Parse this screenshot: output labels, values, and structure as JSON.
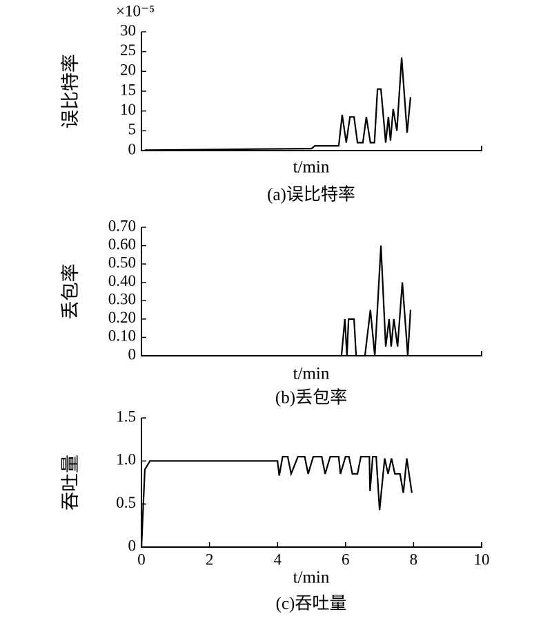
{
  "chart_data": [
    {
      "type": "line",
      "title": "(a)误比特率",
      "ylabel": "误比特率",
      "xlabel": "t/min",
      "y_multiplier": "×10⁻⁵",
      "xlim": [
        0,
        10
      ],
      "ylim": [
        0,
        30
      ],
      "yticks": [
        0,
        5,
        10,
        15,
        20,
        25,
        30
      ],
      "series": [
        {
          "color": "#000000",
          "x": [
            0.1,
            2.4,
            3.5,
            5.0,
            5.1,
            5.8,
            5.9,
            6.02,
            6.13,
            6.25,
            6.35,
            6.51,
            6.61,
            6.73,
            6.85,
            6.94,
            7.04,
            7.18,
            7.26,
            7.32,
            7.4,
            7.51,
            7.65,
            7.81,
            7.91
          ],
          "values": [
            0.1,
            0.3,
            0.4,
            0.5,
            1.2,
            1.2,
            9,
            2,
            8.5,
            8.5,
            2,
            2,
            8.5,
            2,
            2,
            15.5,
            15.5,
            2,
            8.5,
            2.5,
            10.5,
            5,
            23.5,
            4.5,
            13.5
          ]
        }
      ]
    },
    {
      "type": "line",
      "title": "(b)丢包率",
      "ylabel": "丢包率",
      "xlabel": "t/min",
      "xlim": [
        0,
        10
      ],
      "ylim": [
        0,
        0.7
      ],
      "yticks": [
        0,
        {
          "value": 0.1,
          "label": "0.10"
        },
        {
          "value": 0.2,
          "label": "0.20"
        },
        {
          "value": 0.3,
          "label": "0.30"
        },
        {
          "value": 0.4,
          "label": "0.40"
        },
        {
          "value": 0.5,
          "label": "0.50"
        },
        {
          "value": 0.6,
          "label": "0.60"
        },
        {
          "value": 0.7,
          "label": "0.70"
        }
      ],
      "series": [
        {
          "color": "#000000",
          "x": [
            0,
            5.88,
            5.98,
            6.04,
            6.09,
            6.25,
            6.31,
            6.57,
            6.73,
            6.86,
            7.04,
            7.18,
            7.28,
            7.34,
            7.42,
            7.53,
            7.67,
            7.83,
            7.91
          ],
          "values": [
            0,
            0,
            0.2,
            0,
            0.2,
            0.2,
            0,
            0,
            0.25,
            0,
            0.6,
            0.05,
            0.2,
            0.05,
            0.2,
            0.05,
            0.4,
            0,
            0.25
          ]
        }
      ]
    },
    {
      "type": "line",
      "title": "(c)吞吐量",
      "ylabel": "吞吐量",
      "xlabel": "t/min",
      "xlim": [
        0,
        10
      ],
      "xticks": [
        0,
        2,
        4,
        6,
        8,
        10
      ],
      "ylim": [
        0,
        1.5
      ],
      "yticks": [
        0,
        0.5,
        {
          "value": 1.0,
          "label": "1.0"
        },
        1.5
      ],
      "series": [
        {
          "color": "#000000",
          "x": [
            0,
            0.1,
            0.25,
            4.0,
            4.05,
            4.15,
            4.3,
            4.4,
            4.6,
            4.8,
            4.9,
            5.05,
            5.3,
            5.4,
            5.55,
            5.8,
            5.85,
            6.0,
            6.1,
            6.2,
            6.35,
            6.45,
            6.7,
            6.72,
            6.8,
            6.9,
            7.0,
            7.15,
            7.25,
            7.35,
            7.45,
            7.6,
            7.7,
            7.8,
            7.95
          ],
          "values": [
            0,
            0.9,
            1.0,
            1.0,
            0.83,
            1.05,
            1.05,
            0.85,
            1.05,
            1.05,
            0.85,
            1.05,
            1.05,
            0.85,
            1.05,
            1.05,
            0.85,
            1.05,
            1.05,
            0.85,
            0.85,
            1.05,
            1.05,
            0.65,
            1.05,
            1.05,
            0.43,
            1.03,
            0.85,
            1.03,
            0.85,
            0.85,
            0.63,
            1.03,
            0.63
          ]
        }
      ]
    }
  ]
}
